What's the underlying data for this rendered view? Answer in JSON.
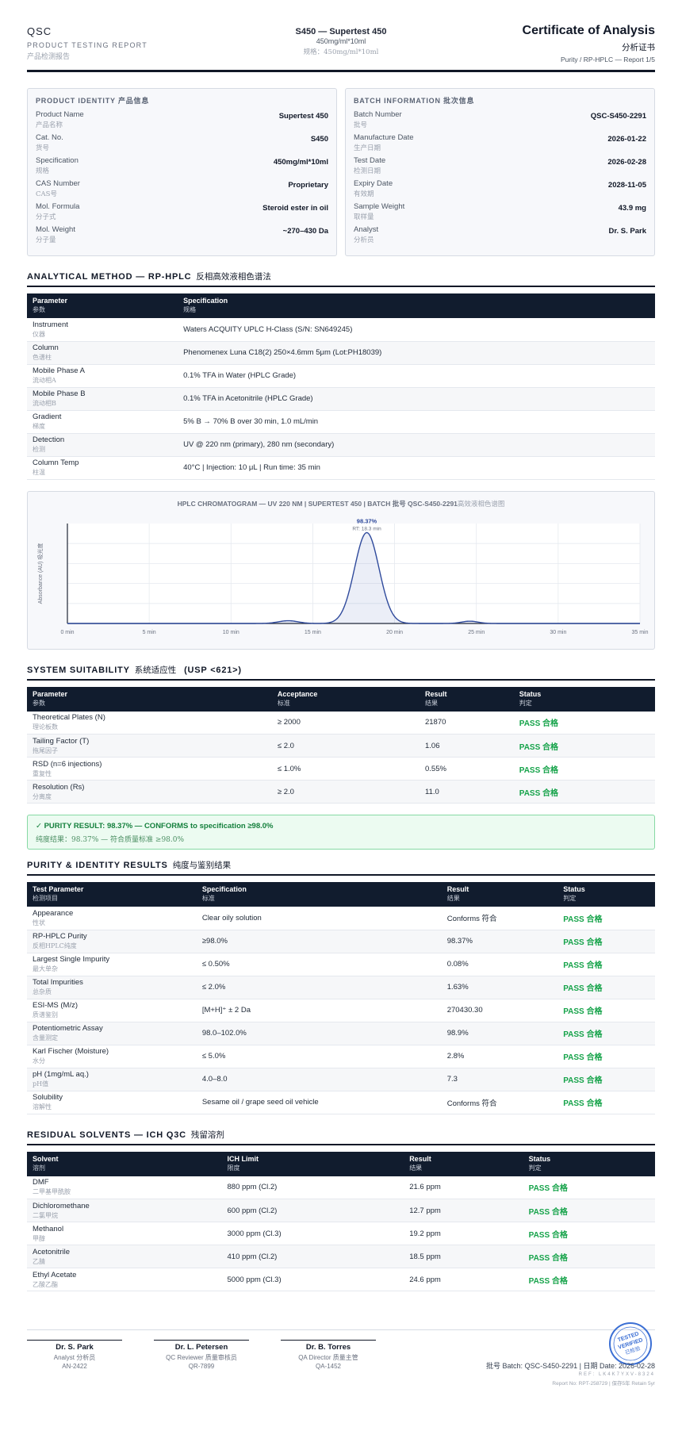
{
  "header": {
    "brand": "QSC",
    "subtitle": "PRODUCT TESTING REPORT",
    "subtitle_cn": "产品检测报告",
    "product_line": "S450 — Supertest 450",
    "product_spec": "450mg/ml*10ml",
    "product_spec_cn": "规格：450mg/ml*10ml",
    "doc_title": "Certificate of Analysis",
    "doc_title_cn": "分析证书",
    "doc_ref": "Purity / RP-HPLC — Report 1/5"
  },
  "product_identity": {
    "title": "PRODUCT IDENTITY 产品信息",
    "items": [
      {
        "label": "Product Name",
        "label_cn": "产品名称",
        "value": "Supertest 450"
      },
      {
        "label": "Cat. No.",
        "label_cn": "货号",
        "value": "S450"
      },
      {
        "label": "Specification",
        "label_cn": "规格",
        "value": "450mg/ml*10ml"
      },
      {
        "label": "CAS Number",
        "label_cn": "CAS号",
        "value": "Proprietary"
      },
      {
        "label": "Mol. Formula",
        "label_cn": "分子式",
        "value": "Steroid ester in oil"
      },
      {
        "label": "Mol. Weight",
        "label_cn": "分子量",
        "value": "~270–430 Da"
      }
    ]
  },
  "batch_info": {
    "title": "BATCH INFORMATION 批次信息",
    "items": [
      {
        "label": "Batch Number",
        "label_cn": "批号",
        "value": "QSC-S450-2291"
      },
      {
        "label": "Manufacture Date",
        "label_cn": "生产日期",
        "value": "2026-01-22"
      },
      {
        "label": "Test Date",
        "label_cn": "检测日期",
        "value": "2026-02-28"
      },
      {
        "label": "Expiry Date",
        "label_cn": "有效期",
        "value": "2028-11-05"
      },
      {
        "label": "Sample Weight",
        "label_cn": "取样量",
        "value": "43.9 mg"
      },
      {
        "label": "Analyst",
        "label_cn": "分析员",
        "value": "Dr. S. Park"
      }
    ]
  },
  "method": {
    "title": "ANALYTICAL METHOD — RP-HPLC",
    "title_cn": "反相高效液相色谱法",
    "headers": [
      {
        "label": "Parameter",
        "cn": "参数"
      },
      {
        "label": "Specification",
        "cn": "规格"
      }
    ],
    "rows": [
      {
        "param": "Instrument",
        "param_cn": "仪器",
        "spec": "Waters ACQUITY UPLC H-Class (S/N: SN649245)"
      },
      {
        "param": "Column",
        "param_cn": "色谱柱",
        "spec": "Phenomenex Luna C18(2) 250×4.6mm 5μm (Lot:PH18039)"
      },
      {
        "param": "Mobile Phase A",
        "param_cn": "流动相A",
        "spec": "0.1% TFA in Water (HPLC Grade)"
      },
      {
        "param": "Mobile Phase B",
        "param_cn": "流动相B",
        "spec": "0.1% TFA in Acetonitrile (HPLC Grade)"
      },
      {
        "param": "Gradient",
        "param_cn": "梯度",
        "spec": "5% B → 70% B over 30 min, 1.0 mL/min"
      },
      {
        "param": "Detection",
        "param_cn": "检测",
        "spec": "UV @ 220 nm (primary), 280 nm (secondary)"
      },
      {
        "param": "Column Temp",
        "param_cn": "柱温",
        "spec": "40°C | Injection: 10 μL | Run time: 35 min"
      }
    ]
  },
  "chromatogram": {
    "title": "HPLC CHROMATOGRAM — UV 220 NM | SUPERTEST 450 | BATCH 批号 QSC-S450-2291",
    "title_cn": "高效液相色谱图",
    "ylabel": "Absorbance (AU) 吸光度",
    "peak_label": "98.37%",
    "peak_rt": "RT: 18.3 min"
  },
  "chart_data": {
    "type": "line",
    "title": "HPLC CHROMATOGRAM — UV 220 NM | SUPERTEST 450 | BATCH 批号 QSC-S450-2291 高效液相色谱图",
    "xlabel": "",
    "ylabel": "Absorbance (AU) 吸光度",
    "xlim": [
      0,
      35
    ],
    "ylim": [
      0,
      1.1
    ],
    "x_ticks": [
      "0 min",
      "5 min",
      "10 min",
      "15 min",
      "20 min",
      "25 min",
      "30 min",
      "35 min"
    ],
    "x_tick_values": [
      0,
      5,
      10,
      15,
      20,
      25,
      30,
      35
    ],
    "grid": true,
    "peaks": [
      {
        "rt": 13.5,
        "height": 0.03,
        "width": 0.6
      },
      {
        "rt": 18.3,
        "height": 1.0,
        "width": 0.75,
        "label": "98.37%",
        "sublabel": "RT: 18.3 min"
      },
      {
        "rt": 24.6,
        "height": 0.025,
        "width": 0.5
      }
    ]
  },
  "suitability": {
    "title": "SYSTEM SUITABILITY",
    "title_cn": "系统适应性",
    "title_tail": "(USP <621>)",
    "headers": [
      {
        "label": "Parameter",
        "cn": "参数"
      },
      {
        "label": "Acceptance",
        "cn": "标准"
      },
      {
        "label": "Result",
        "cn": "结果"
      },
      {
        "label": "Status",
        "cn": "判定"
      }
    ],
    "rows": [
      {
        "param": "Theoretical Plates (N)",
        "param_cn": "理论板数",
        "accept": "≥ 2000",
        "result": "21870",
        "status": "PASS 合格"
      },
      {
        "param": "Tailing Factor (T)",
        "param_cn": "拖尾因子",
        "accept": "≤ 2.0",
        "result": "1.06",
        "status": "PASS 合格"
      },
      {
        "param": "RSD (n=6 injections)",
        "param_cn": "重复性",
        "accept": "≤ 1.0%",
        "result": "0.55%",
        "status": "PASS 合格"
      },
      {
        "param": "Resolution (Rs)",
        "param_cn": "分离度",
        "accept": "≥ 2.0",
        "result": "11.0",
        "status": "PASS 合格"
      }
    ]
  },
  "purity_banner": {
    "line1": "✓ PURITY RESULT: 98.37% — CONFORMS to specification ≥98.0%",
    "line2": "纯度结果：98.37% — 符合质量标准 ≥98.0%"
  },
  "results": {
    "title": "PURITY & IDENTITY RESULTS",
    "title_cn": "纯度与鉴别结果",
    "headers": [
      {
        "label": "Test Parameter",
        "cn": "检测项目"
      },
      {
        "label": "Specification",
        "cn": "标准"
      },
      {
        "label": "Result",
        "cn": "结果"
      },
      {
        "label": "Status",
        "cn": "判定"
      }
    ],
    "rows": [
      {
        "param": "Appearance",
        "param_cn": "性状",
        "spec": "Clear oily solution",
        "result": "Conforms 符合",
        "status": "PASS 合格"
      },
      {
        "param": "RP-HPLC Purity",
        "param_cn": "反相HPLC纯度",
        "spec": "≥98.0%",
        "result": "98.37%",
        "status": "PASS 合格"
      },
      {
        "param": "Largest Single Impurity",
        "param_cn": "最大单杂",
        "spec": "≤ 0.50%",
        "result": "0.08%",
        "status": "PASS 合格"
      },
      {
        "param": "Total Impurities",
        "param_cn": "总杂质",
        "spec": "≤ 2.0%",
        "result": "1.63%",
        "status": "PASS 合格"
      },
      {
        "param": "ESI-MS (M/z)",
        "param_cn": "质谱鉴别",
        "spec": "[M+H]⁺ ± 2 Da",
        "result": "270430.30",
        "status": "PASS 合格"
      },
      {
        "param": "Potentiometric Assay",
        "param_cn": "含量测定",
        "spec": "98.0–102.0%",
        "result": "98.9%",
        "status": "PASS 合格"
      },
      {
        "param": "Karl Fischer (Moisture)",
        "param_cn": "水分",
        "spec": "≤ 5.0%",
        "result": "2.8%",
        "status": "PASS 合格"
      },
      {
        "param": "pH (1mg/mL aq.)",
        "param_cn": "pH值",
        "spec": "4.0–8.0",
        "result": "7.3",
        "status": "PASS 合格"
      },
      {
        "param": "Solubility",
        "param_cn": "溶解性",
        "spec": "Sesame oil / grape seed oil vehicle",
        "result": "Conforms 符合",
        "status": "PASS 合格"
      }
    ]
  },
  "solvents": {
    "title": "RESIDUAL SOLVENTS — ICH Q3C",
    "title_cn": "残留溶剂",
    "headers": [
      {
        "label": "Solvent",
        "cn": "溶剂"
      },
      {
        "label": "ICH Limit",
        "cn": "限度"
      },
      {
        "label": "Result",
        "cn": "结果"
      },
      {
        "label": "Status",
        "cn": "判定"
      }
    ],
    "rows": [
      {
        "name": "DMF",
        "name_cn": "二甲基甲酰胺",
        "limit": "880 ppm (Cl.2)",
        "result": "21.6 ppm",
        "status": "PASS 合格"
      },
      {
        "name": "Dichloromethane",
        "name_cn": "二氯甲烷",
        "limit": "600 ppm (Cl.2)",
        "result": "12.7 ppm",
        "status": "PASS 合格"
      },
      {
        "name": "Methanol",
        "name_cn": "甲醇",
        "limit": "3000 ppm (Cl.3)",
        "result": "19.2 ppm",
        "status": "PASS 合格"
      },
      {
        "name": "Acetonitrile",
        "name_cn": "乙腈",
        "limit": "410 ppm (Cl.2)",
        "result": "18.5 ppm",
        "status": "PASS 合格"
      },
      {
        "name": "Ethyl Acetate",
        "name_cn": "乙酸乙酯",
        "limit": "5000 ppm (Cl.3)",
        "result": "24.6 ppm",
        "status": "PASS 合格"
      }
    ]
  },
  "signatures": [
    {
      "name": "Dr. S. Park",
      "role": "Analyst 分析员",
      "id": "AN-2422"
    },
    {
      "name": "Dr. L. Petersen",
      "role": "QC Reviewer 质量审核员",
      "id": "QR-7899"
    },
    {
      "name": "Dr. B. Torres",
      "role": "QA Director 质量主管",
      "id": "QA-1452"
    }
  ],
  "stamp": {
    "line1": "TESTED",
    "line2": "VERIFIED",
    "line3": "已检验"
  },
  "footer": {
    "batch_date": "批号 Batch: QSC-S450-2291 | 日期 Date: 2026-02-28",
    "ref": "REF: LK4K7YXV-8324",
    "report_no": "Report No: RPT-258729 | 保存5年 Retain 5yr"
  },
  "colors": {
    "accent": "#111c2e",
    "pass": "#16a34a",
    "curve": "#2f4a9c"
  }
}
